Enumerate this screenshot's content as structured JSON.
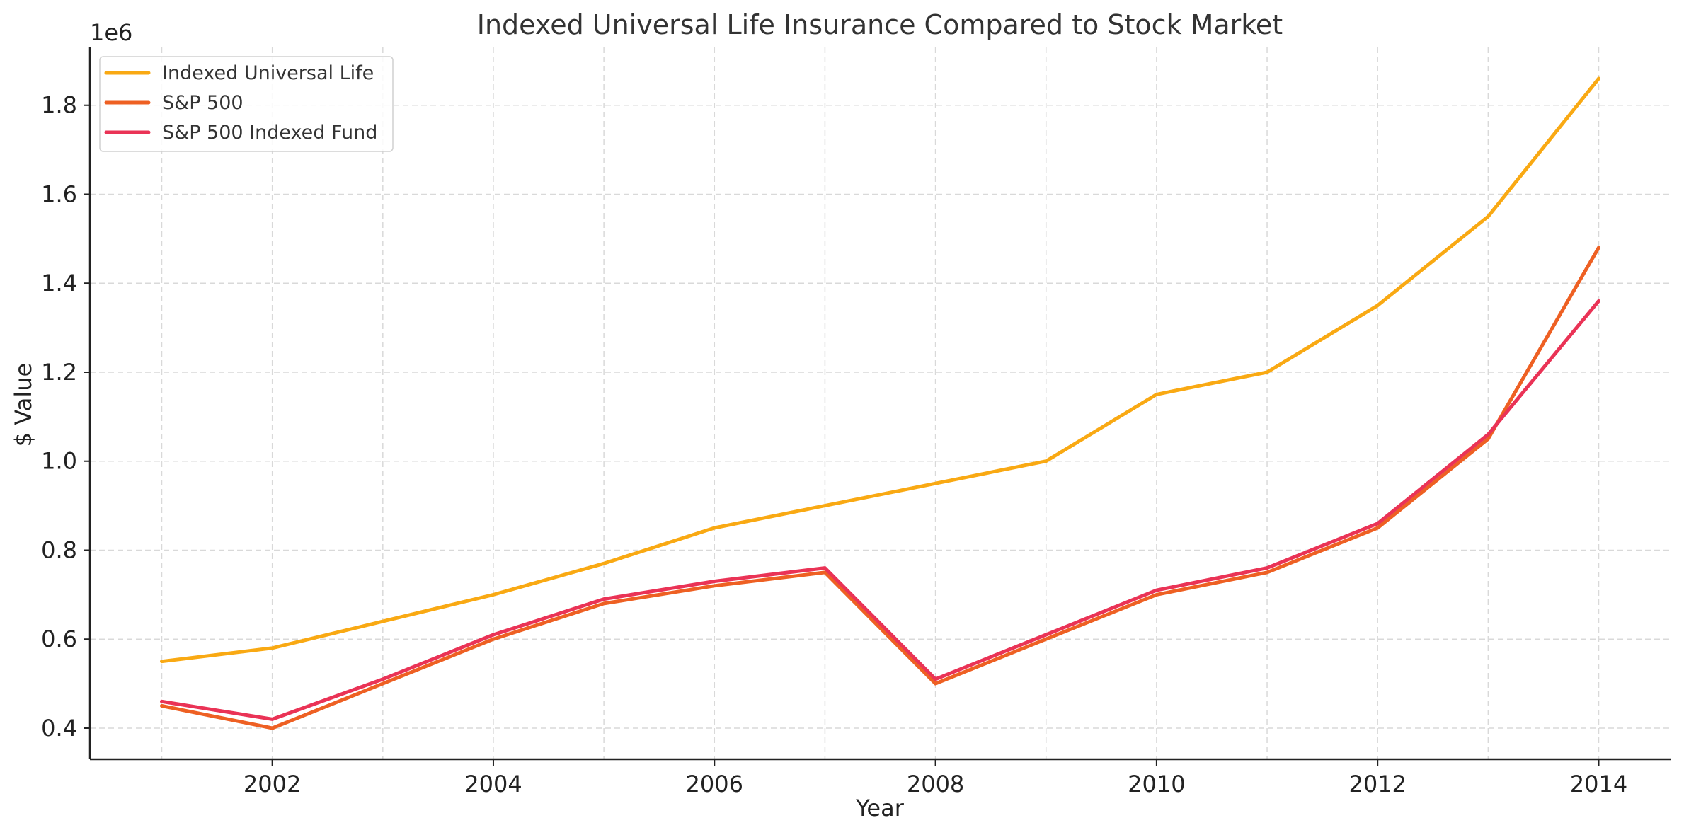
{
  "chart_data": {
    "type": "line",
    "title": "Indexed Universal Life Insurance Compared to Stock Market",
    "xlabel": "Year",
    "ylabel": "$ Value",
    "y_offset_label": "1e6",
    "x": [
      2001,
      2002,
      2003,
      2004,
      2005,
      2006,
      2007,
      2008,
      2009,
      2010,
      2011,
      2012,
      2013,
      2014
    ],
    "xlim": [
      2000.35,
      2014.65
    ],
    "ylim": [
      330000,
      1930000
    ],
    "x_ticks": [
      2002,
      2004,
      2006,
      2008,
      2010,
      2012,
      2014
    ],
    "x_tick_labels": [
      "2002",
      "2004",
      "2006",
      "2008",
      "2010",
      "2012",
      "2014"
    ],
    "y_ticks": [
      400000,
      600000,
      800000,
      1000000,
      1200000,
      1400000,
      1600000,
      1800000
    ],
    "y_tick_labels": [
      "0.4",
      "0.6",
      "0.8",
      "1.0",
      "1.2",
      "1.4",
      "1.6",
      "1.8"
    ],
    "grid": true,
    "legend_position": "top-left",
    "series": [
      {
        "name": "Indexed Universal Life",
        "color": "#F9A913",
        "values": [
          550000,
          580000,
          640000,
          700000,
          770000,
          850000,
          900000,
          950000,
          1000000,
          1150000,
          1200000,
          1350000,
          1550000,
          1860000
        ]
      },
      {
        "name": "S&P 500",
        "color": "#EE6023",
        "values": [
          450000,
          400000,
          500000,
          600000,
          680000,
          720000,
          750000,
          500000,
          600000,
          700000,
          750000,
          850000,
          1050000,
          1480000
        ]
      },
      {
        "name": "S&P 500 Indexed Fund",
        "color": "#EA3356",
        "values": [
          460000,
          420000,
          510000,
          610000,
          690000,
          730000,
          760000,
          510000,
          610000,
          710000,
          760000,
          860000,
          1060000,
          1360000
        ]
      }
    ]
  }
}
